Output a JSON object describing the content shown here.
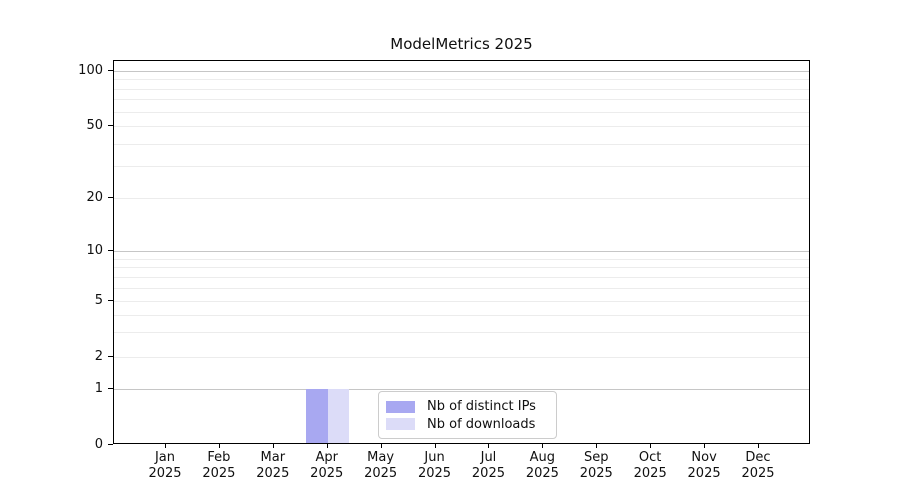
{
  "chart_data": {
    "type": "bar",
    "title": "ModelMetrics 2025",
    "xlabel": "",
    "ylabel": "",
    "year_label": "2025",
    "categories": [
      "Jan",
      "Feb",
      "Mar",
      "Apr",
      "May",
      "Jun",
      "Jul",
      "Aug",
      "Sep",
      "Oct",
      "Nov",
      "Dec"
    ],
    "series": [
      {
        "name": "Nb of distinct IPs",
        "color": "#a8a8f1",
        "values": [
          0,
          0,
          0,
          1,
          0,
          0,
          0,
          0,
          0,
          0,
          0,
          0
        ]
      },
      {
        "name": "Nb of downloads",
        "color": "#dcdcf8",
        "values": [
          0,
          0,
          0,
          1,
          0,
          0,
          0,
          0,
          0,
          0,
          0,
          0
        ]
      }
    ],
    "yticks": [
      0,
      1,
      2,
      5,
      10,
      20,
      50,
      100
    ],
    "ylim": [
      0,
      110
    ],
    "yscale": "symlog",
    "grid": "horizontal",
    "legend_position": "lower center inside plot"
  }
}
